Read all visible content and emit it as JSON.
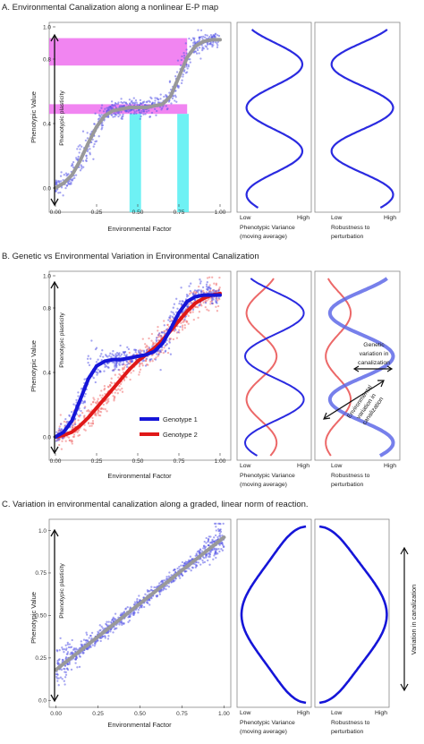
{
  "panels": [
    {
      "id": "A",
      "title": "A. Environmental Canalization along a nonlinear E-P map",
      "xlabel": "Environmental Factor",
      "ylabel": "Phenotypic Value",
      "plasticity_label": "Phenotypic plasticity",
      "x_ticks": [
        "0.00",
        "0.25",
        "0.50",
        "0.75",
        "1.00"
      ],
      "y_ticks": [
        "0.0",
        "0.4",
        "0.8",
        "1.0"
      ],
      "variance_label": "Phenotypic Variance",
      "variance_sublabel": "(moving average)",
      "robustness_label": "Robustness to",
      "robustness_sublabel": "perturbation",
      "low_label": "Low",
      "high_label": "High"
    },
    {
      "id": "B",
      "title": "B. Genetic vs Environmental Variation in Environmental Canalization",
      "xlabel": "Environmental Factor",
      "ylabel": "Phenotypic Value",
      "plasticity_label": "Phenotypic plasticity",
      "x_ticks": [
        "0.00",
        "0.25",
        "0.50",
        "0.75",
        "1.00"
      ],
      "y_ticks": [
        "0.0",
        "0.4",
        "0.8",
        "1.0"
      ],
      "legend": [
        {
          "name": "Genotype 1",
          "color": "#1515d8"
        },
        {
          "name": "Genotype 2",
          "color": "#e01818"
        }
      ],
      "variance_label": "Phenotypic Variance",
      "variance_sublabel": "(moving average)",
      "robustness_label": "Robustness to",
      "robustness_sublabel": "perturbation",
      "low_label": "Low",
      "high_label": "High",
      "genetic_annotation": [
        "Genetic",
        "variation in",
        "canalization"
      ],
      "env_annotation": [
        "Environmental",
        "variation in",
        "canalization"
      ]
    },
    {
      "id": "C",
      "title": "C. Variation in environmental canalization along a graded, linear norm of reaction.",
      "xlabel": "Environmental Factor",
      "ylabel": "Phenotypic Value",
      "plasticity_label": "Phenotypic plasticity",
      "x_ticks": [
        "0.00",
        "0.25",
        "0.50",
        "0.75",
        "1.00"
      ],
      "y_ticks": [
        "0.0",
        "0.25",
        "0.50",
        "0.75",
        "1.0"
      ],
      "variance_label": "Phenotypic Variance",
      "variance_sublabel": "(moving average)",
      "robustness_label": "Robustness to",
      "robustness_sublabel": "perturbation",
      "low_label": "Low",
      "high_label": "High",
      "side_label": "Variation in canalization"
    }
  ],
  "colors": {
    "blue": "#1515d8",
    "red": "#e01818",
    "scatter_blue": "#5a5ae8",
    "scatter_red": "#f07070",
    "trend": "#999999",
    "magenta_band": "#ee66ee",
    "cyan_band": "#55eef2"
  },
  "chart_data": [
    {
      "type": "scatter",
      "title": "A. Environmental Canalization along a nonlinear E-P map",
      "xlabel": "Environmental Factor",
      "ylabel": "Phenotypic Value",
      "xlim": [
        0,
        1
      ],
      "ylim": [
        -0.1,
        1.0
      ],
      "x_ticks": [
        0,
        0.25,
        0.5,
        0.75,
        1.0
      ],
      "y_ticks": [
        0.0,
        0.4,
        0.8,
        1.0
      ],
      "series": [
        {
          "trend_x": [
            0,
            0.05,
            0.1,
            0.15,
            0.2,
            0.25,
            0.3,
            0.35,
            0.4,
            0.45,
            0.5,
            0.55,
            0.6,
            0.65,
            0.7,
            0.75,
            0.8,
            0.85,
            0.9,
            0.95,
            1.0
          ],
          "trend_y": [
            0.0,
            0.03,
            0.08,
            0.17,
            0.28,
            0.38,
            0.45,
            0.48,
            0.49,
            0.5,
            0.5,
            0.5,
            0.51,
            0.52,
            0.57,
            0.69,
            0.81,
            0.88,
            0.91,
            0.92,
            0.92
          ]
        }
      ],
      "bands_y": [
        [
          0.76,
          0.93
        ],
        [
          0.46,
          0.52
        ]
      ],
      "bands_x": [
        [
          0.45,
          0.52
        ],
        [
          0.74,
          0.81
        ]
      ],
      "variance_profile": {
        "y": [
          0.0,
          0.5,
          0.95
        ],
        "peaks_at_low": true
      },
      "grid": false
    },
    {
      "type": "scatter",
      "title": "B. Genetic vs Environmental Variation in Environmental Canalization",
      "xlabel": "Environmental Factor",
      "ylabel": "Phenotypic Value",
      "xlim": [
        0,
        1
      ],
      "ylim": [
        -0.1,
        1.0
      ],
      "x_ticks": [
        0,
        0.25,
        0.5,
        0.75,
        1.0
      ],
      "y_ticks": [
        0.0,
        0.4,
        0.8,
        1.0
      ],
      "series": [
        {
          "name": "Genotype 1",
          "x": [
            0,
            0.05,
            0.1,
            0.15,
            0.2,
            0.25,
            0.3,
            0.35,
            0.4,
            0.45,
            0.5,
            0.55,
            0.6,
            0.65,
            0.7,
            0.75,
            0.8,
            0.85,
            0.9,
            0.95,
            1.0
          ],
          "y": [
            0.0,
            0.03,
            0.1,
            0.23,
            0.36,
            0.44,
            0.47,
            0.48,
            0.48,
            0.49,
            0.5,
            0.51,
            0.53,
            0.58,
            0.67,
            0.77,
            0.84,
            0.87,
            0.88,
            0.88,
            0.88
          ]
        },
        {
          "name": "Genotype 2",
          "x": [
            0,
            0.05,
            0.1,
            0.15,
            0.2,
            0.25,
            0.3,
            0.35,
            0.4,
            0.45,
            0.5,
            0.55,
            0.6,
            0.65,
            0.7,
            0.75,
            0.8,
            0.85,
            0.9,
            0.95,
            1.0
          ],
          "y": [
            0.0,
            0.01,
            0.03,
            0.07,
            0.12,
            0.18,
            0.24,
            0.3,
            0.36,
            0.42,
            0.47,
            0.51,
            0.55,
            0.6,
            0.66,
            0.72,
            0.78,
            0.83,
            0.86,
            0.88,
            0.89
          ]
        }
      ],
      "legend": "bottom-right",
      "grid": false
    },
    {
      "type": "scatter",
      "title": "C. Variation in environmental canalization along a graded, linear norm of reaction.",
      "xlabel": "Environmental Factor",
      "ylabel": "Phenotypic Value",
      "xlim": [
        -0.03,
        1.03
      ],
      "ylim": [
        -0.03,
        1.05
      ],
      "x_ticks": [
        0,
        0.25,
        0.5,
        0.75,
        1.0
      ],
      "y_ticks": [
        0.0,
        0.25,
        0.5,
        0.75,
        1.0
      ],
      "series": [
        {
          "trend_x": [
            0,
            1
          ],
          "trend_y": [
            0.18,
            0.96
          ]
        }
      ],
      "grid": false
    }
  ]
}
